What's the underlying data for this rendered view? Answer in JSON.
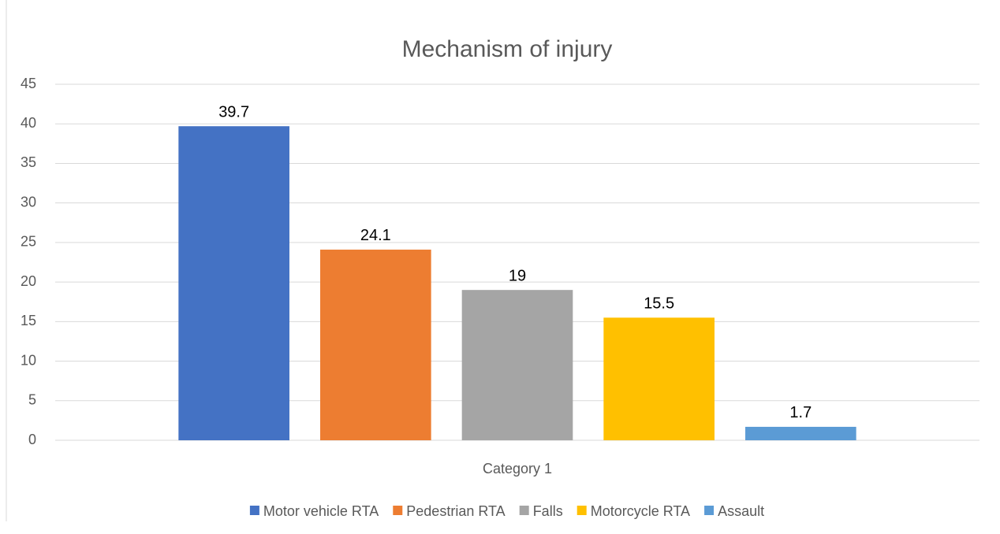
{
  "chart_data": {
    "type": "bar",
    "title": "Mechanism of injury",
    "categories": [
      "Category 1"
    ],
    "series": [
      {
        "name": "Motor vehicle RTA",
        "color": "#4472c4",
        "values": [
          39.7
        ]
      },
      {
        "name": "Pedestrian RTA",
        "color": "#ed7d31",
        "values": [
          24.1
        ]
      },
      {
        "name": "Falls",
        "color": "#a5a5a5",
        "values": [
          19
        ]
      },
      {
        "name": "Motorcycle RTA",
        "color": "#ffc000",
        "values": [
          15.5
        ]
      },
      {
        "name": "Assault",
        "color": "#5b9bd5",
        "values": [
          1.7
        ]
      }
    ],
    "ylim": [
      0,
      45
    ],
    "yticks": [
      0,
      5,
      10,
      15,
      20,
      25,
      30,
      35,
      40,
      45
    ],
    "grid": true
  }
}
